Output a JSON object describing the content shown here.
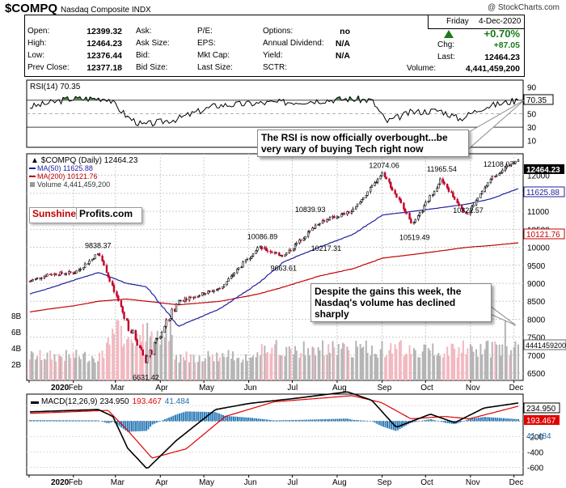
{
  "header": {
    "symbol": "$COMPQ",
    "name": "Nasdaq Composite INDX",
    "watermark": "@ StockCharts.com"
  },
  "quote": {
    "date_day": "Friday",
    "date": "4-Dec-2020",
    "open_label": "Open:",
    "open": "12399.32",
    "high_label": "High:",
    "high": "12464.23",
    "low_label": "Low:",
    "low": "12376.44",
    "prev_label": "Prev Close:",
    "prev": "12377.18",
    "ask_label": "Ask:",
    "asksize_label": "Ask Size:",
    "bid_label": "Bid:",
    "bidsize_label": "Bid Size:",
    "pe_label": "P/E:",
    "eps_label": "EPS:",
    "mktcap_label": "Mkt Cap:",
    "lastsize_label": "Last Size:",
    "options_label": "Options:",
    "options": "no",
    "div_label": "Annual Dividend:",
    "div": "N/A",
    "yield_label": "Yield:",
    "yield": "N/A",
    "sctr_label": "SCTR:",
    "pct_change": "+0.70%",
    "chg_label": "Chg:",
    "chg": "+87.05",
    "last_label": "Last:",
    "last": "12464.23",
    "vol_label": "Volume:",
    "vol": "4,441,459,200",
    "up_color": "#1a7a1a"
  },
  "rsi_panel": {
    "label": "RSI(14) 70.35",
    "value_box": "70.35",
    "ticks": [
      "90",
      "70",
      "50",
      "30",
      "10"
    ]
  },
  "price_panel": {
    "legend_main": "$COMPQ (Daily) 12464.23",
    "legend_ma50": "MA(50) 11625.88",
    "legend_ma200": "MA(200) 10121.76",
    "legend_vol": "Volume 4,441,459,200",
    "last_box": "12464.23",
    "ma50_box": "11625.88",
    "ma200_box": "10121.76",
    "vol_box": "4441459200",
    "price_ticks": [
      "12000",
      "11500",
      "11000",
      "10500",
      "10000",
      "9500",
      "9000",
      "8500",
      "8000",
      "7500",
      "7000",
      "6500"
    ],
    "vol_ticks": [
      "8B",
      "6B",
      "4B",
      "2B"
    ],
    "annotations": [
      "9838.37",
      "6631.42",
      "9663.61",
      "10086.89",
      "10217.31",
      "10839.93",
      "12074.06",
      "10519.49",
      "11965.54",
      "10822.57",
      "12108.07"
    ],
    "ma50_color": "#1f1f9c",
    "ma200_color": "#c00000"
  },
  "macd_panel": {
    "label_prefix": "MACD(12,26,9)",
    "macd": "234.950",
    "signal": "193.467",
    "hist": "41.484",
    "ticks": [
      "200",
      "0",
      "-200",
      "-400",
      "-600"
    ]
  },
  "x_axis": {
    "months": [
      "2020",
      "Feb",
      "Mar",
      "Apr",
      "May",
      "Jun",
      "Jul",
      "Aug",
      "Sep",
      "Oct",
      "Nov",
      "Dec"
    ]
  },
  "callouts": {
    "rsi_note": "The RSI is now officially overbought...be very wary of buying Tech right now",
    "volume_note": "Despite the gains this week, the Nasdaq's volume has declined sharply"
  },
  "logo": {
    "part1": "Sunshine",
    "part2": "Profits.com"
  },
  "chart_data": {
    "type": "line",
    "x": [
      "2020-01-02",
      "2020-01-15",
      "2020-02-03",
      "2020-02-19",
      "2020-03-09",
      "2020-03-23",
      "2020-04-14",
      "2020-05-13",
      "2020-06-08",
      "2020-06-26",
      "2020-07-20",
      "2020-08-12",
      "2020-09-02",
      "2020-09-23",
      "2020-10-12",
      "2020-10-30",
      "2020-11-16",
      "2020-12-04"
    ],
    "series": [
      {
        "name": "$COMPQ (Daily)",
        "values": [
          9050,
          9250,
          9300,
          9838,
          7950,
          6860,
          8500,
          8860,
          10000,
          9760,
          10700,
          11000,
          12074,
          10633,
          11877,
          10911,
          11924,
          12464
        ]
      }
    ],
    "ma50": [
      8700,
      8850,
      9100,
      9300,
      9000,
      8900,
      7800,
      8300,
      9000,
      9600,
      10000,
      10350,
      10900,
      11000,
      11100,
      11200,
      11350,
      11626
    ],
    "ma200": [
      8200,
      8280,
      8380,
      8500,
      8560,
      8500,
      8400,
      8500,
      8700,
      8900,
      9200,
      9400,
      9700,
      9800,
      9900,
      10000,
      10050,
      10122
    ],
    "rsi": {
      "last": 70.35,
      "levels": [
        70,
        30
      ]
    },
    "macd": {
      "macd": 234.95,
      "signal": 193.467,
      "histogram": 41.484
    },
    "volume_last": 4441459200,
    "labeled_points": [
      {
        "x": "2020-02-19",
        "value": 9838.37
      },
      {
        "x": "2020-03-23",
        "value": 6631.42
      },
      {
        "x": "2020-06-26",
        "value": 9663.61
      },
      {
        "x": "2020-06-10",
        "value": 10086.89
      },
      {
        "x": "2020-07-24",
        "value": 10217.31
      },
      {
        "x": "2020-07-13",
        "value": 10839.93
      },
      {
        "x": "2020-09-02",
        "value": 12074.06
      },
      {
        "x": "2020-09-23",
        "value": 10519.49
      },
      {
        "x": "2020-10-12",
        "value": 11965.54
      },
      {
        "x": "2020-10-30",
        "value": 10822.57
      },
      {
        "x": "2020-11-20",
        "value": 12108.07
      }
    ],
    "ylim": [
      6300,
      12600
    ],
    "grid": true
  }
}
